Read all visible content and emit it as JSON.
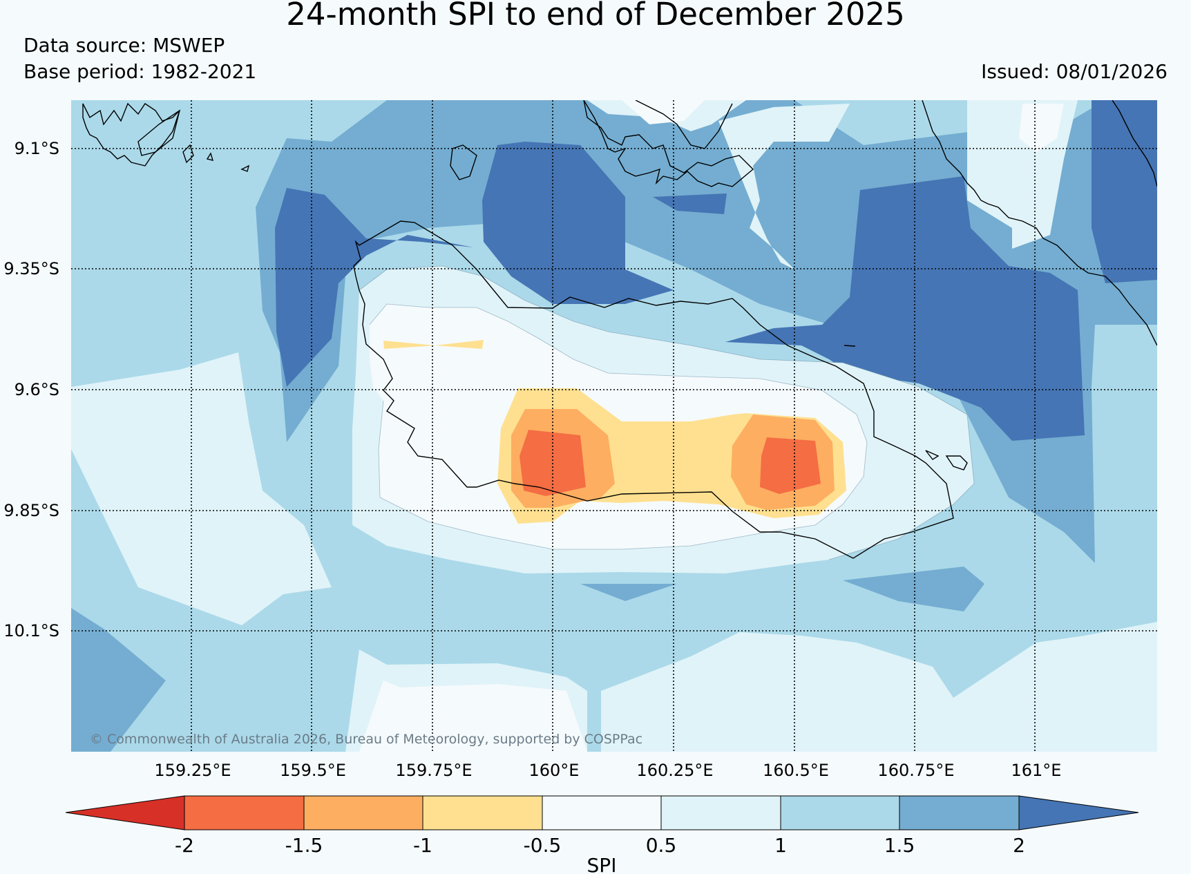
{
  "title": "24-month SPI to end of December 2025",
  "data_source": "Data source: MSWEP",
  "base_period": "Base period: 1982-2021",
  "issued": "Issued: 08/01/2026",
  "copyright": "© Commonwealth of Australia 2026, Bureau of Meteorology, supported by COSPPac",
  "map": {
    "lat_labels": [
      "9.1°S",
      "9.35°S",
      "9.6°S",
      "9.85°S",
      "10.1°S"
    ],
    "lon_labels": [
      "159.25°E",
      "159.5°E",
      "159.75°E",
      "160°E",
      "160.25°E",
      "160.5°E",
      "160.75°E",
      "161°E"
    ]
  },
  "legend": {
    "label": "SPI",
    "ticks": [
      "-2",
      "-1.5",
      "-1",
      "-0.5",
      "0.5",
      "1",
      "1.5",
      "2"
    ],
    "classes": [
      {
        "range": "< -2",
        "color": "#d73027"
      },
      {
        "range": "-2 to -1.5",
        "color": "#f46d43"
      },
      {
        "range": "-1.5 to -1",
        "color": "#fdae61"
      },
      {
        "range": "-1 to -0.5",
        "color": "#fee090"
      },
      {
        "range": "-0.5 to 0.5",
        "color": "#f5fafc"
      },
      {
        "range": "0.5 to 1",
        "color": "#e0f3f8"
      },
      {
        "range": "1 to 1.5",
        "color": "#abd9e9"
      },
      {
        "range": "1.5 to 2",
        "color": "#74add1"
      },
      {
        "range": "> 2",
        "color": "#4575b4"
      }
    ]
  }
}
